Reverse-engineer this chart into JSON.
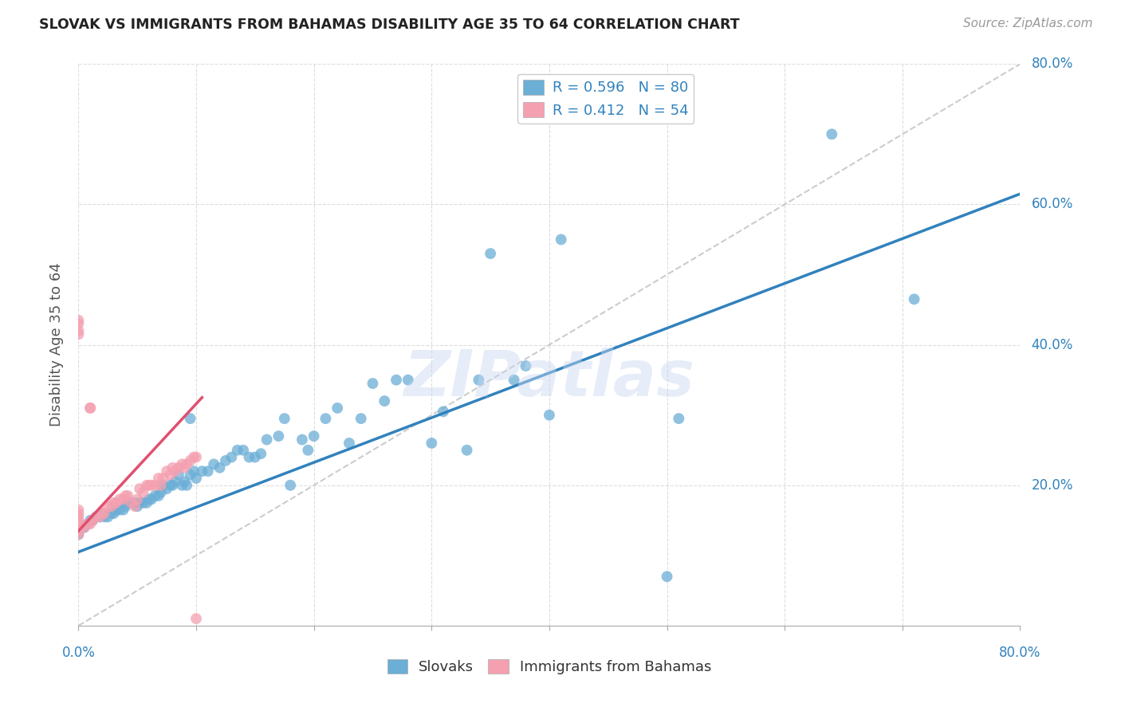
{
  "title": "SLOVAK VS IMMIGRANTS FROM BAHAMAS DISABILITY AGE 35 TO 64 CORRELATION CHART",
  "source": "Source: ZipAtlas.com",
  "ylabel": "Disability Age 35 to 64",
  "xlim": [
    0.0,
    0.8
  ],
  "ylim": [
    0.0,
    0.8
  ],
  "xtick_positions": [
    0.0,
    0.1,
    0.2,
    0.3,
    0.4,
    0.5,
    0.6,
    0.7,
    0.8
  ],
  "ytick_positions": [
    0.0,
    0.2,
    0.4,
    0.6,
    0.8
  ],
  "legend_label1": "R = 0.596   N = 80",
  "legend_label2": "R = 0.412   N = 54",
  "legend_bottom_label1": "Slovaks",
  "legend_bottom_label2": "Immigrants from Bahamas",
  "color_blue": "#6baed6",
  "color_pink": "#f4a0b0",
  "color_blue_line": "#3182bd",
  "color_pink_line": "#e05070",
  "color_diag": "#cccccc",
  "watermark": "ZIPatlas",
  "slovak_x": [
    0.0,
    0.005,
    0.008,
    0.01,
    0.012,
    0.015,
    0.018,
    0.02,
    0.022,
    0.025,
    0.028,
    0.03,
    0.032,
    0.035,
    0.038,
    0.04,
    0.042,
    0.045,
    0.048,
    0.05,
    0.052,
    0.055,
    0.058,
    0.06,
    0.062,
    0.065,
    0.068,
    0.07,
    0.072,
    0.075,
    0.078,
    0.08,
    0.082,
    0.085,
    0.088,
    0.09,
    0.092,
    0.095,
    0.098,
    0.1,
    0.105,
    0.11,
    0.115,
    0.12,
    0.125,
    0.13,
    0.135,
    0.14,
    0.145,
    0.15,
    0.155,
    0.16,
    0.17,
    0.175,
    0.18,
    0.19,
    0.195,
    0.2,
    0.21,
    0.22,
    0.23,
    0.24,
    0.25,
    0.26,
    0.27,
    0.28,
    0.3,
    0.31,
    0.33,
    0.34,
    0.35,
    0.37,
    0.38,
    0.4,
    0.41,
    0.5,
    0.51,
    0.64,
    0.71,
    0.095
  ],
  "slovak_y": [
    0.13,
    0.14,
    0.145,
    0.15,
    0.15,
    0.155,
    0.155,
    0.16,
    0.155,
    0.155,
    0.16,
    0.16,
    0.165,
    0.165,
    0.165,
    0.17,
    0.175,
    0.175,
    0.175,
    0.17,
    0.175,
    0.175,
    0.175,
    0.18,
    0.18,
    0.185,
    0.185,
    0.19,
    0.2,
    0.195,
    0.2,
    0.2,
    0.205,
    0.215,
    0.2,
    0.205,
    0.2,
    0.215,
    0.22,
    0.21,
    0.22,
    0.22,
    0.23,
    0.225,
    0.235,
    0.24,
    0.25,
    0.25,
    0.24,
    0.24,
    0.245,
    0.265,
    0.27,
    0.295,
    0.2,
    0.265,
    0.25,
    0.27,
    0.295,
    0.31,
    0.26,
    0.295,
    0.345,
    0.32,
    0.35,
    0.35,
    0.26,
    0.305,
    0.25,
    0.35,
    0.53,
    0.35,
    0.37,
    0.3,
    0.55,
    0.07,
    0.295,
    0.7,
    0.465,
    0.295
  ],
  "bahamas_x": [
    0.0,
    0.0,
    0.0,
    0.0,
    0.0,
    0.0,
    0.0,
    0.0,
    0.005,
    0.008,
    0.01,
    0.012,
    0.015,
    0.018,
    0.02,
    0.022,
    0.025,
    0.028,
    0.03,
    0.032,
    0.035,
    0.038,
    0.04,
    0.042,
    0.045,
    0.048,
    0.05,
    0.052,
    0.055,
    0.058,
    0.06,
    0.062,
    0.065,
    0.068,
    0.07,
    0.072,
    0.075,
    0.078,
    0.08,
    0.082,
    0.085,
    0.088,
    0.09,
    0.092,
    0.095,
    0.098,
    0.1,
    0.01,
    0.0,
    0.0,
    0.0,
    0.0,
    0.01,
    0.1
  ],
  "bahamas_y": [
    0.13,
    0.135,
    0.14,
    0.145,
    0.15,
    0.155,
    0.16,
    0.165,
    0.14,
    0.145,
    0.145,
    0.15,
    0.155,
    0.155,
    0.16,
    0.16,
    0.17,
    0.17,
    0.175,
    0.175,
    0.18,
    0.18,
    0.185,
    0.185,
    0.175,
    0.17,
    0.18,
    0.195,
    0.19,
    0.2,
    0.2,
    0.2,
    0.2,
    0.21,
    0.2,
    0.21,
    0.22,
    0.215,
    0.225,
    0.22,
    0.225,
    0.23,
    0.225,
    0.23,
    0.235,
    0.24,
    0.24,
    0.31,
    0.415,
    0.43,
    0.42,
    0.435,
    0.31,
    0.01
  ],
  "blue_line_x": [
    0.0,
    0.8
  ],
  "blue_line_y": [
    0.105,
    0.615
  ],
  "pink_line_x": [
    0.0,
    0.105
  ],
  "pink_line_y": [
    0.135,
    0.325
  ]
}
